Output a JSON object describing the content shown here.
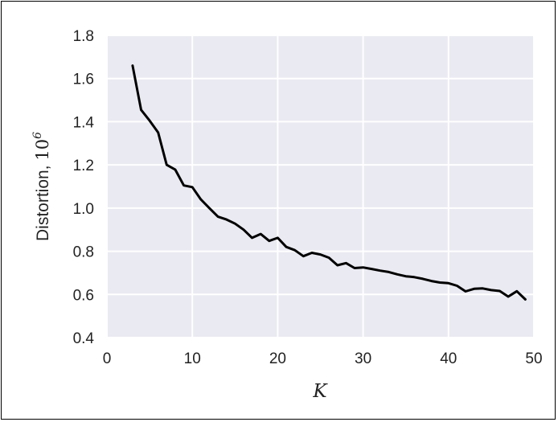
{
  "chart_data": {
    "type": "line",
    "xlabel": "K",
    "ylabel_text": "Distortion, ",
    "ylabel_base": "10",
    "ylabel_exp": "6",
    "xlim": [
      0,
      50
    ],
    "ylim": [
      0.4,
      1.8
    ],
    "x_ticks": [
      0,
      10,
      20,
      30,
      40,
      50
    ],
    "x_tick_labels": [
      "0",
      "10",
      "20",
      "30",
      "40",
      "50"
    ],
    "y_ticks": [
      0.4,
      0.6,
      0.8,
      1.0,
      1.2,
      1.4,
      1.6,
      1.8
    ],
    "y_tick_labels": [
      "0.4",
      "0.6",
      "0.8",
      "1.0",
      "1.2",
      "1.4",
      "1.6",
      "1.8"
    ],
    "grid": true,
    "background_color": "#eaeaf2",
    "grid_color": "#ffffff",
    "line_color": "#000000",
    "series": [
      {
        "x": [
          3,
          4,
          5,
          6,
          7,
          8,
          9,
          10,
          11,
          12,
          13,
          14,
          15,
          16,
          17,
          18,
          19,
          20,
          21,
          22,
          23,
          24,
          25,
          26,
          27,
          28,
          29,
          30,
          31,
          32,
          33,
          34,
          35,
          36,
          37,
          38,
          39,
          40,
          41,
          42,
          43,
          44,
          45,
          46,
          47,
          48,
          49
        ],
        "values": [
          1.66,
          1.455,
          1.405,
          1.35,
          1.2,
          1.178,
          1.105,
          1.097,
          1.04,
          1.0,
          0.96,
          0.947,
          0.928,
          0.9,
          0.862,
          0.88,
          0.848,
          0.862,
          0.82,
          0.805,
          0.777,
          0.793,
          0.785,
          0.77,
          0.735,
          0.745,
          0.722,
          0.725,
          0.718,
          0.71,
          0.704,
          0.693,
          0.684,
          0.68,
          0.672,
          0.662,
          0.655,
          0.652,
          0.64,
          0.614,
          0.626,
          0.628,
          0.62,
          0.616,
          0.59,
          0.615,
          0.577
        ]
      }
    ]
  }
}
